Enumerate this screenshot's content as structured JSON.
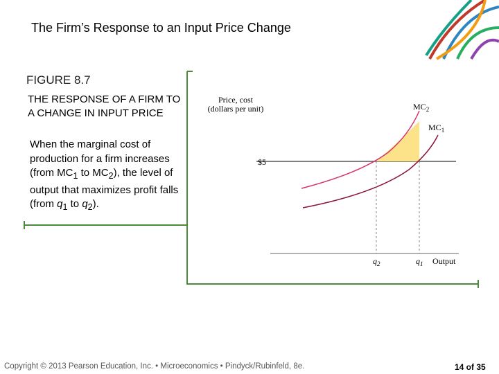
{
  "header": {
    "title": "The Firm’s Response to an Input Price Change"
  },
  "figure": {
    "label": "FIGURE 8.7",
    "heading": "THE RESPONSE OF A FIRM TO A CHANGE IN INPUT PRICE",
    "body": [
      "When the marginal cost of production for a firm increases (from MC",
      "1",
      " to MC",
      "2",
      "), the level of output that maximizes profit falls (from ",
      "q",
      "1",
      " to ",
      "q",
      "2",
      ")."
    ]
  },
  "diagram": {
    "y_axis_label": [
      "Price, cost",
      "(dollars per unit)"
    ],
    "price_label": "$5",
    "curves": [
      {
        "name": "MC",
        "sub": "2"
      },
      {
        "name": "MC",
        "sub": "1"
      }
    ],
    "x_labels": [
      {
        "name": "q",
        "sub": "2"
      },
      {
        "name": "q",
        "sub": "1"
      }
    ],
    "x_axis_label": "Output"
  },
  "footer": {
    "copyright": "Copyright © 2013  Pearson Education, Inc. • Microeconomics • Pindyck/Rubinfeld, 8e.",
    "page": "14 of 35"
  }
}
